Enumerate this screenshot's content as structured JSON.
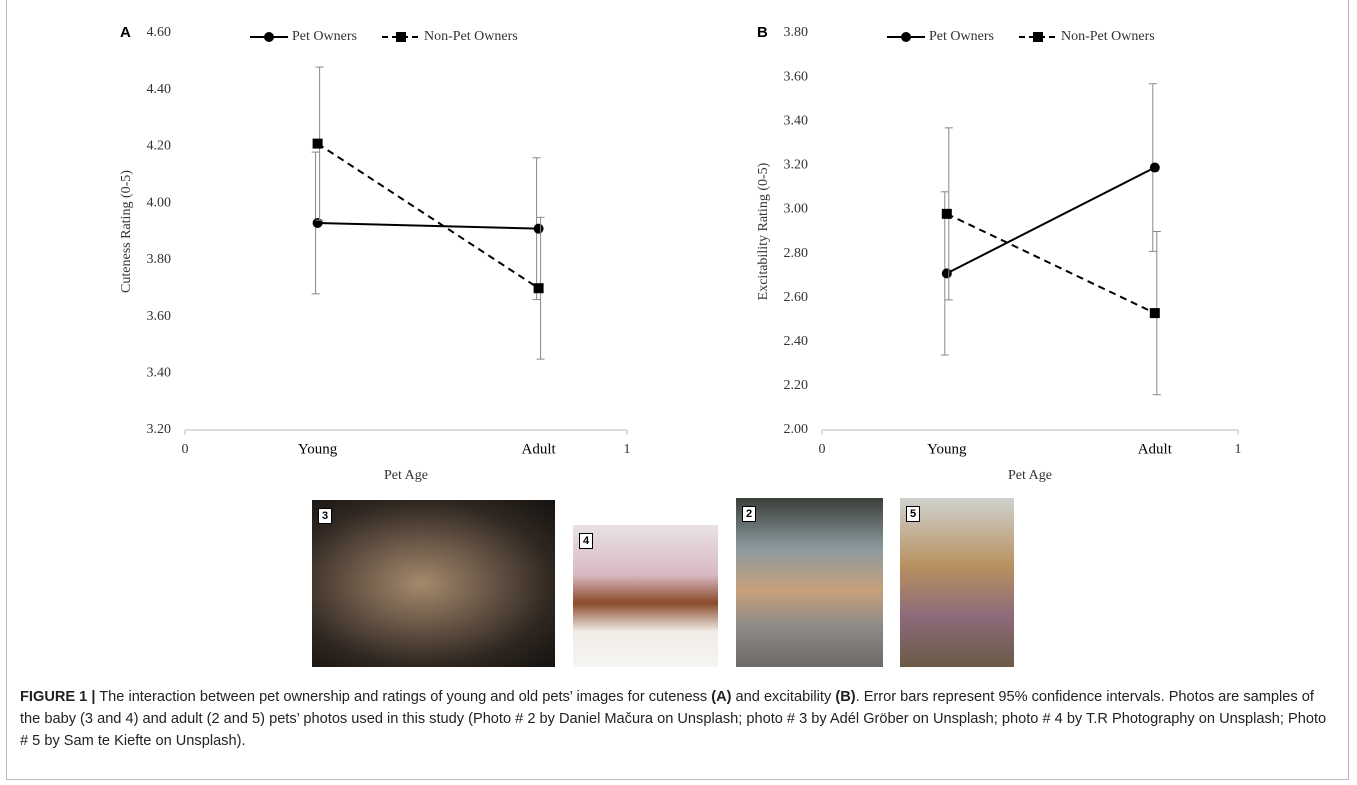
{
  "chart_data": [
    {
      "type": "line",
      "panel": "A",
      "y_label": "Cuteness Rating (0-5)",
      "x_label": "Pet Age",
      "x": [
        0.3,
        0.8
      ],
      "categories": [
        "Young",
        "Adult"
      ],
      "xlim": [
        0,
        1
      ],
      "xticks": [
        0,
        1
      ],
      "ylim": [
        3.2,
        4.6
      ],
      "yticks": [
        {
          "value": 3.2,
          "label": "3.20"
        },
        {
          "value": 3.4,
          "label": "3.40"
        },
        {
          "value": 3.6,
          "label": "3.60"
        },
        {
          "value": 3.8,
          "label": "3.80"
        },
        {
          "value": 4.0,
          "label": "4.00"
        },
        {
          "value": 4.2,
          "label": "4.20"
        },
        {
          "value": 4.4,
          "label": "4.40"
        },
        {
          "value": 4.6,
          "label": "4.60"
        }
      ],
      "series": [
        {
          "name": "Pet Owners",
          "color": "#000000",
          "marker": "circle",
          "dashed": false,
          "values": [
            3.93,
            3.91
          ],
          "errors": [
            0.25,
            0.25
          ]
        },
        {
          "name": "Non-Pet Owners",
          "color": "#000000",
          "marker": "square",
          "dashed": true,
          "values": [
            4.21,
            3.7
          ],
          "errors": [
            0.27,
            0.25
          ]
        }
      ]
    },
    {
      "type": "line",
      "panel": "B",
      "y_label": "Excitability Rating (0-5)",
      "x_label": "Pet Age",
      "x": [
        0.3,
        0.8
      ],
      "categories": [
        "Young",
        "Adult"
      ],
      "xlim": [
        0,
        1
      ],
      "xticks": [
        0,
        1
      ],
      "ylim": [
        2.0,
        3.8
      ],
      "yticks": [
        {
          "value": 2.0,
          "label": "2.00"
        },
        {
          "value": 2.2,
          "label": "2.20"
        },
        {
          "value": 2.4,
          "label": "2.40"
        },
        {
          "value": 2.6,
          "label": "2.60"
        },
        {
          "value": 2.8,
          "label": "2.80"
        },
        {
          "value": 3.0,
          "label": "3.00"
        },
        {
          "value": 3.2,
          "label": "3.20"
        },
        {
          "value": 3.4,
          "label": "3.40"
        },
        {
          "value": 3.6,
          "label": "3.60"
        },
        {
          "value": 3.8,
          "label": "3.80"
        }
      ],
      "series": [
        {
          "name": "Pet Owners",
          "color": "#000000",
          "marker": "circle",
          "dashed": false,
          "values": [
            2.71,
            3.19
          ],
          "errors": [
            0.37,
            0.38
          ]
        },
        {
          "name": "Non-Pet Owners",
          "color": "#000000",
          "marker": "square",
          "dashed": true,
          "values": [
            2.98,
            2.53
          ],
          "errors": [
            0.39,
            0.37
          ]
        }
      ]
    }
  ],
  "photos": [
    {
      "label": "3"
    },
    {
      "label": "4"
    },
    {
      "label": "2"
    },
    {
      "label": "5"
    }
  ],
  "caption": {
    "label": "FIGURE 1 |",
    "parts": [
      " The interaction between pet ownership and ratings of young and old pets’ images for cuteness ",
      "(A)",
      " and excitability ",
      "(B)",
      ". Error bars represent 95% confidence intervals. Photos are samples of the baby (3 and 4) and adult (2 and 5) pets’ photos used in this study (Photo # 2 by Daniel Mačura on Unsplash; photo # 3 by Adél Gröber on Unsplash; photo # 4 by T.R Photography on Unsplash; Photo # 5 by Sam te Kiefte on Unsplash)."
    ]
  }
}
